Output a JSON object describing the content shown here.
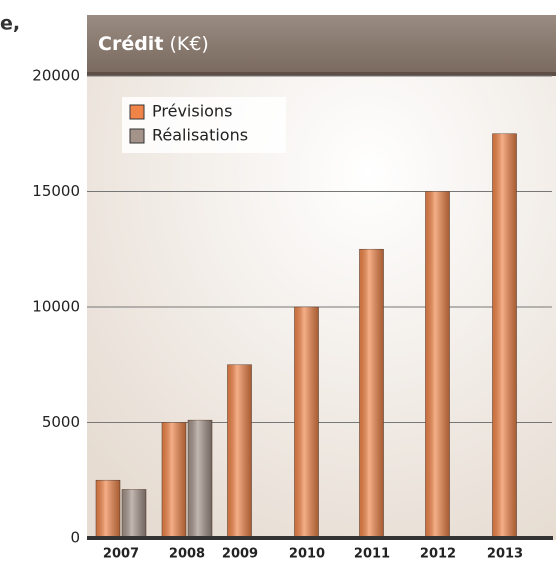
{
  "fragment": "e,",
  "chart_data": {
    "type": "bar",
    "title": "Crédit",
    "subtitle": "(K€)",
    "categories": [
      "2007",
      "2008",
      "2009",
      "2010",
      "2011",
      "2012",
      "2013"
    ],
    "series": [
      {
        "name": "Prévisions",
        "color": "#f08448",
        "values": [
          2500,
          5000,
          7500,
          10000,
          12500,
          15000,
          17500
        ]
      },
      {
        "name": "Réalisations",
        "color": "#a39389",
        "values": [
          2100,
          5100,
          null,
          null,
          null,
          null,
          null
        ]
      }
    ],
    "ylim": [
      0,
      20000
    ],
    "yticks": [
      0,
      5000,
      10000,
      15000,
      20000
    ],
    "grid": true,
    "legend": "upper left"
  }
}
